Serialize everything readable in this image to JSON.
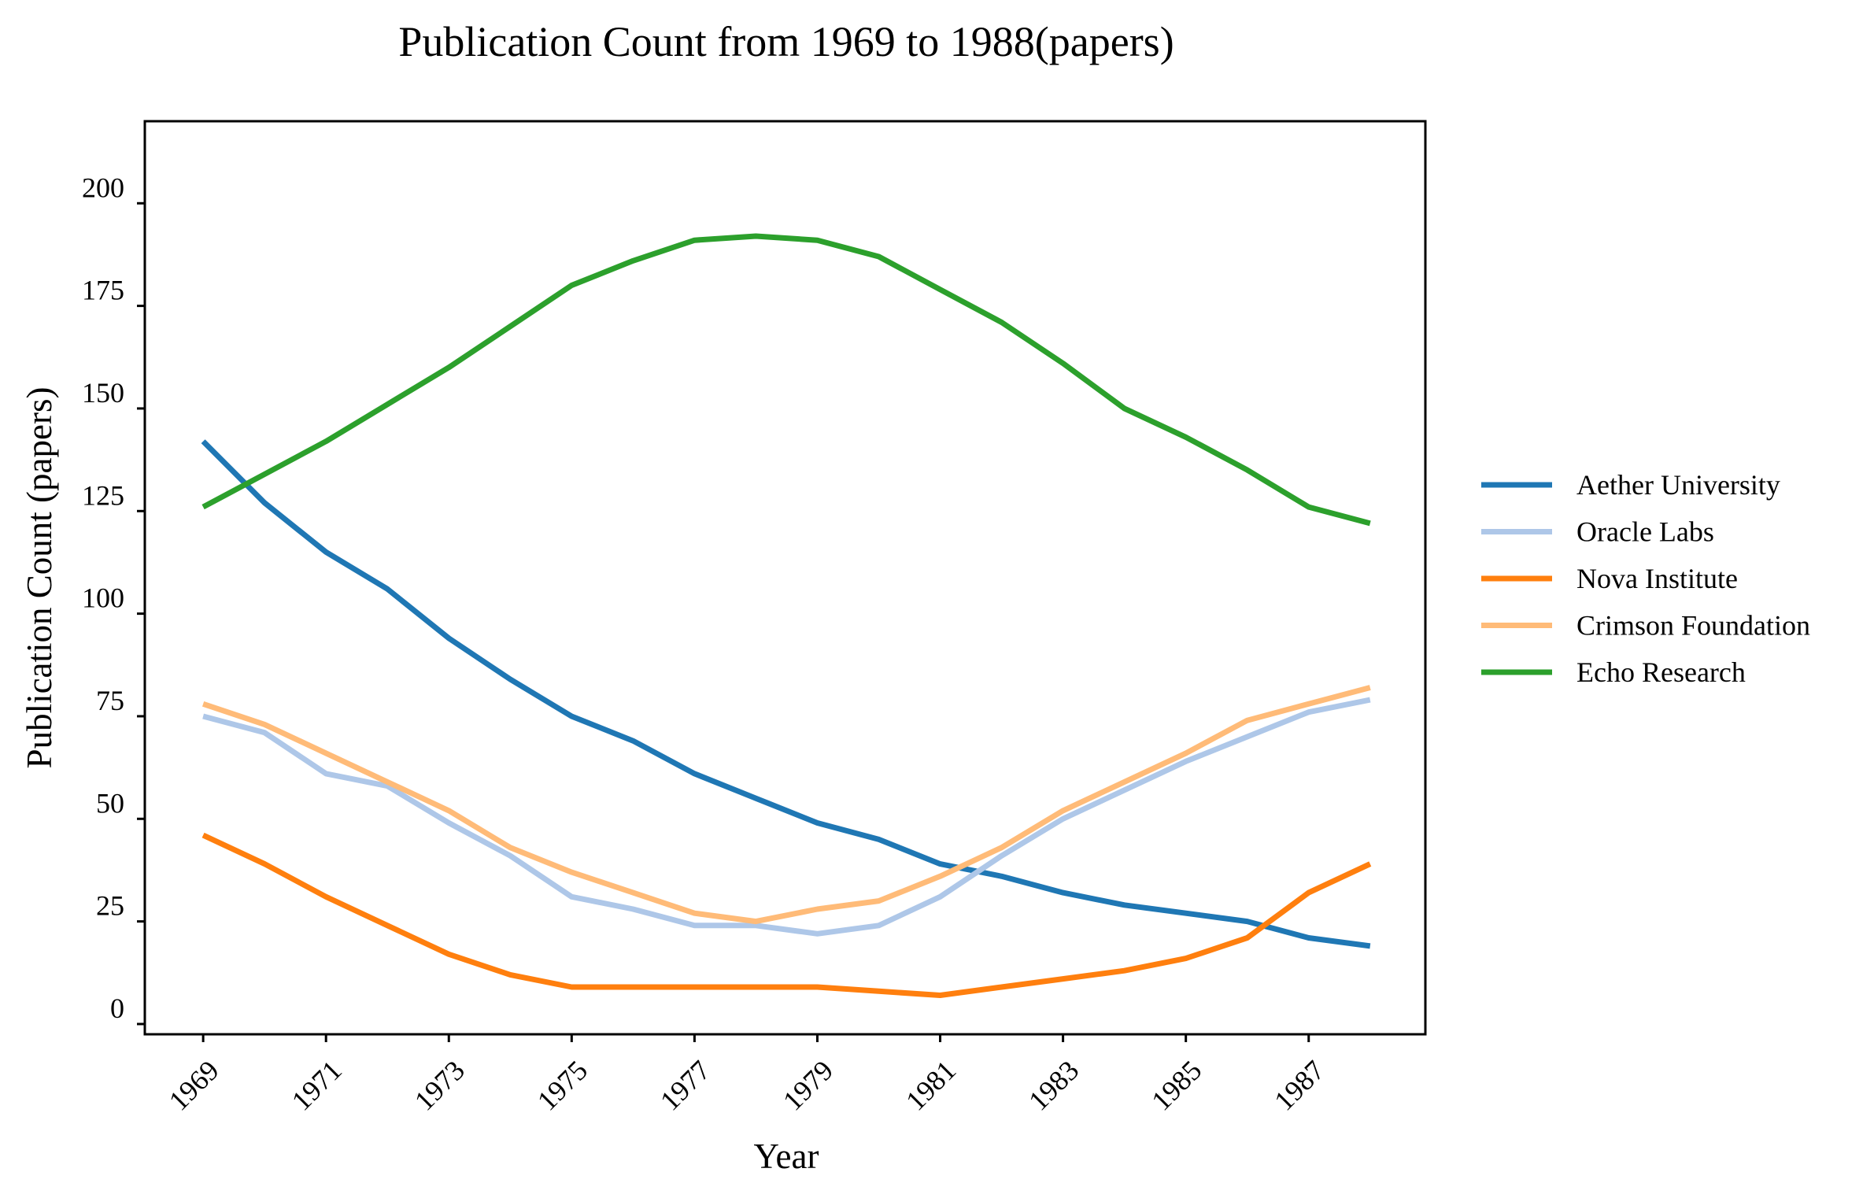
{
  "chart_data": {
    "type": "line",
    "title": "Publication Count from 1969 to 1988(papers)",
    "xlabel": "Year",
    "ylabel": "Publication Count (papers)",
    "x": [
      1969,
      1970,
      1971,
      1972,
      1973,
      1974,
      1975,
      1976,
      1977,
      1978,
      1979,
      1980,
      1981,
      1982,
      1983,
      1984,
      1985,
      1986,
      1987,
      1988
    ],
    "x_tick_labels": [
      "1969",
      "1971",
      "1973",
      "1975",
      "1977",
      "1979",
      "1981",
      "1983",
      "1985",
      "1987"
    ],
    "y_tick_labels": [
      "0",
      "25",
      "50",
      "75",
      "100",
      "125",
      "150",
      "175",
      "200"
    ],
    "xlim": [
      1968.05,
      1988.9
    ],
    "ylim": [
      -2.5,
      220
    ],
    "grid": false,
    "legend_position": "right",
    "series": [
      {
        "name": "Aether University",
        "color": "#1f77b4",
        "values": [
          142,
          127,
          115,
          106,
          94,
          84,
          75,
          69,
          61,
          55,
          49,
          45,
          39,
          36,
          32,
          29,
          27,
          25,
          21,
          19
        ]
      },
      {
        "name": "Oracle Labs",
        "color": "#aec7e8",
        "values": [
          75,
          71,
          61,
          58,
          49,
          41,
          31,
          28,
          24,
          24,
          22,
          24,
          31,
          41,
          50,
          57,
          64,
          70,
          76,
          79
        ]
      },
      {
        "name": "Nova Institute",
        "color": "#ff7f0e",
        "values": [
          46,
          39,
          31,
          24,
          17,
          12,
          9,
          9,
          9,
          9,
          9,
          8,
          7,
          9,
          11,
          13,
          16,
          21,
          32,
          39
        ]
      },
      {
        "name": "Crimson Foundation",
        "color": "#ffbb78",
        "values": [
          78,
          73,
          66,
          59,
          52,
          43,
          37,
          32,
          27,
          25,
          28,
          30,
          36,
          43,
          52,
          59,
          66,
          74,
          78,
          82
        ]
      },
      {
        "name": "Echo Research",
        "color": "#2ca02c",
        "values": [
          126,
          134,
          142,
          151,
          160,
          170,
          180,
          186,
          191,
          192,
          191,
          187,
          179,
          171,
          161,
          150,
          143,
          135,
          126,
          122
        ]
      }
    ]
  }
}
